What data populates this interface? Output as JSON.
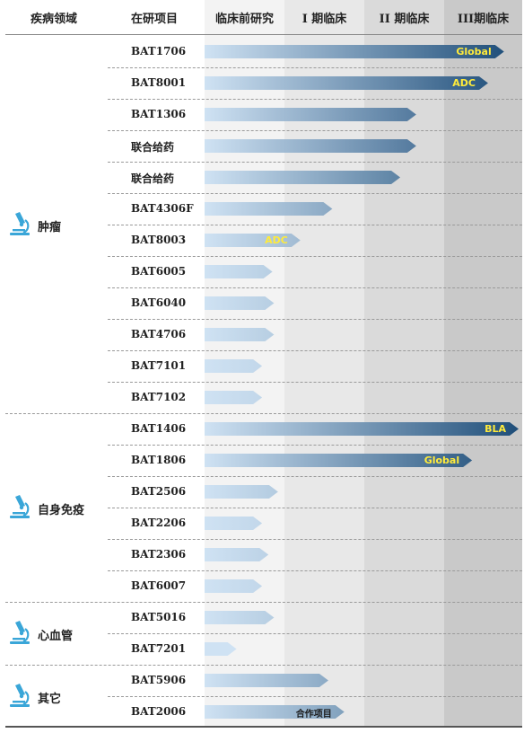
{
  "headers": {
    "disease": "疾病领域",
    "project": "在研项目",
    "preclinical": "临床前研究",
    "phase1": "I 期临床",
    "phase2": "II 期临床",
    "phase3": "III期临床"
  },
  "colors": {
    "bar_light": "#cfe2f3",
    "bar_dark": "#1f4e79",
    "badge_yellow": "#ffeb3b",
    "badge_dark": "#1f4e79",
    "col_preclinical": "#f2f2f2",
    "col_phase1": "#e6e6e6",
    "col_phase2": "#d9d9d9",
    "col_phase3": "#c8c8c8"
  },
  "groups": [
    {
      "label": "肿瘤",
      "icon": "microscope-icon",
      "first": 0,
      "last": 11
    },
    {
      "label": "自身免疫",
      "icon": "microscope-icon",
      "first": 12,
      "last": 17
    },
    {
      "label": "心血管",
      "icon": "microscope-icon",
      "first": 18,
      "last": 19
    },
    {
      "label": "其它",
      "icon": "microscope-icon",
      "first": 20,
      "last": 21
    }
  ],
  "chart_data": {
    "type": "bar",
    "orientation": "horizontal",
    "stages": [
      "临床前研究",
      "I 期临床",
      "II 期临床",
      "III期临床"
    ],
    "xlim": [
      0,
      4
    ],
    "projects": [
      {
        "name": "BAT1706",
        "progress": 3.75,
        "badge": "Global"
      },
      {
        "name": "BAT8001",
        "progress": 3.55,
        "badge": "ADC"
      },
      {
        "name": "BAT1306",
        "progress": 2.65,
        "badge": ""
      },
      {
        "name": "联合给药",
        "progress": 2.65,
        "badge": ""
      },
      {
        "name": "联合给药",
        "progress": 2.45,
        "badge": ""
      },
      {
        "name": "BAT4306F",
        "progress": 1.6,
        "badge": ""
      },
      {
        "name": "BAT8003",
        "progress": 1.2,
        "badge": "ADC"
      },
      {
        "name": "BAT6005",
        "progress": 0.85,
        "badge": ""
      },
      {
        "name": "BAT6040",
        "progress": 0.87,
        "badge": ""
      },
      {
        "name": "BAT4706",
        "progress": 0.87,
        "badge": ""
      },
      {
        "name": "BAT7101",
        "progress": 0.72,
        "badge": ""
      },
      {
        "name": "BAT7102",
        "progress": 0.72,
        "badge": ""
      },
      {
        "name": "BAT1406",
        "progress": 3.97,
        "badge": "BLA"
      },
      {
        "name": "BAT1806",
        "progress": 3.35,
        "badge": "Global"
      },
      {
        "name": "BAT2506",
        "progress": 0.92,
        "badge": ""
      },
      {
        "name": "BAT2206",
        "progress": 0.72,
        "badge": ""
      },
      {
        "name": "BAT2306",
        "progress": 0.8,
        "badge": ""
      },
      {
        "name": "BAT6007",
        "progress": 0.72,
        "badge": ""
      },
      {
        "name": "BAT5016",
        "progress": 0.87,
        "badge": ""
      },
      {
        "name": "BAT7201",
        "progress": 0.4,
        "badge": ""
      },
      {
        "name": "BAT5906",
        "progress": 1.55,
        "badge": ""
      },
      {
        "name": "BAT2006",
        "progress": 1.75,
        "badge": "合作项目"
      }
    ]
  }
}
